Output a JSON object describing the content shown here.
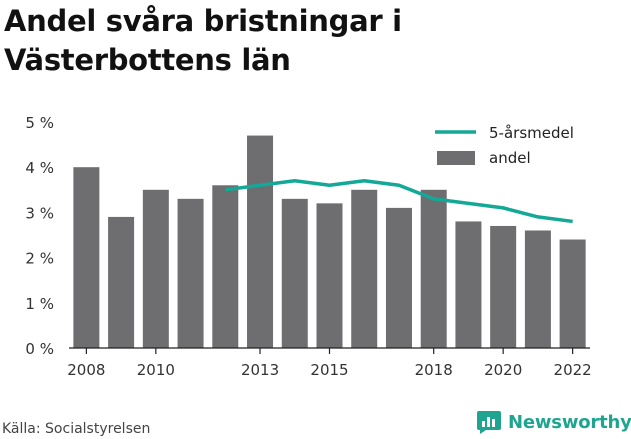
{
  "title": "Andel svåra bristningar i Västerbottens län",
  "source": "Källa: Socialstyrelsen",
  "brand": "Newsworthy",
  "colors": {
    "bar": "#6e6d70",
    "line": "#14a896",
    "brand": "#1fa58f"
  },
  "chart_data": {
    "type": "bar",
    "title": "Andel svåra bristningar i Västerbottens län",
    "xlabel": "",
    "ylabel": "",
    "x": [
      2008,
      2009,
      2010,
      2011,
      2012,
      2013,
      2014,
      2015,
      2016,
      2017,
      2018,
      2019,
      2020,
      2021,
      2022
    ],
    "x_tick_labels": [
      "2008",
      "2010",
      "2013",
      "2015",
      "2018",
      "2020",
      "2022"
    ],
    "x_tick_values": [
      2008,
      2010,
      2013,
      2015,
      2018,
      2020,
      2022
    ],
    "y_tick_labels": [
      "0 %",
      "1 %",
      "2 %",
      "3 %",
      "4 %",
      "5 %"
    ],
    "ylim": [
      0,
      5
    ],
    "grid": false,
    "legend_position": "top-right",
    "series": [
      {
        "name": "andel",
        "type": "bar",
        "values": [
          4.0,
          2.9,
          3.5,
          3.3,
          3.6,
          4.7,
          3.3,
          3.2,
          3.5,
          3.1,
          3.5,
          2.8,
          2.7,
          2.6,
          2.4
        ]
      },
      {
        "name": "5-årsmedel",
        "type": "line",
        "values": [
          null,
          null,
          null,
          null,
          3.5,
          3.6,
          3.7,
          3.6,
          3.7,
          3.6,
          3.3,
          3.2,
          3.1,
          2.9,
          2.8
        ]
      }
    ]
  }
}
